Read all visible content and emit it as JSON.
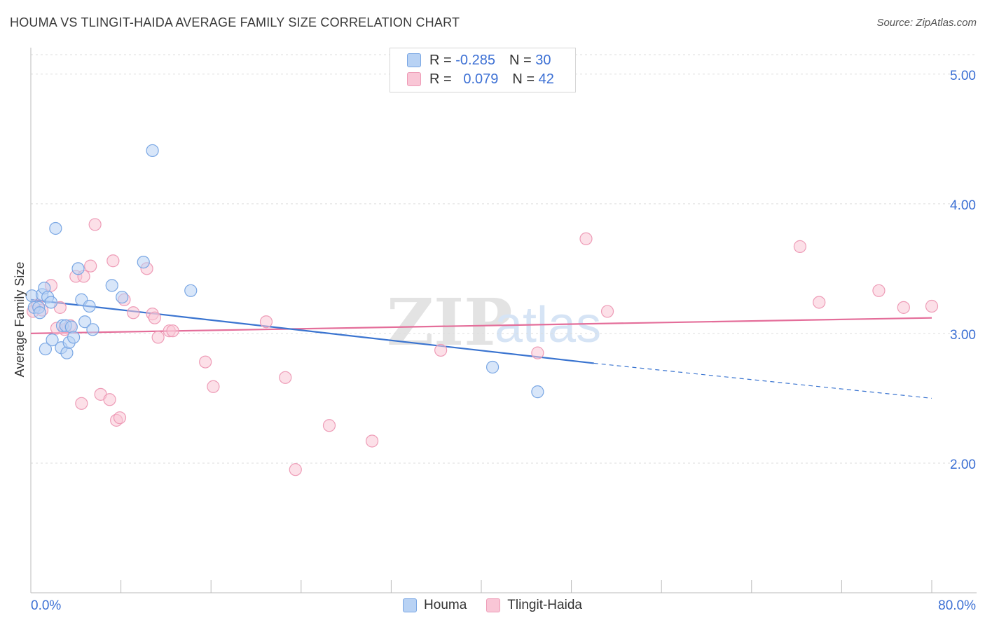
{
  "title": "HOUMA VS TLINGIT-HAIDA AVERAGE FAMILY SIZE CORRELATION CHART",
  "source": "Source: ZipAtlas.com",
  "watermark": {
    "zip": "ZIP",
    "atlas": "atlas"
  },
  "legend": {
    "rows": [
      {
        "r_label": "R = ",
        "r_value": "-0.285",
        "n_label": "N = ",
        "n_value": "30"
      },
      {
        "r_label": "R = ",
        "r_value": "0.079",
        "n_label": "N = ",
        "n_value": "42"
      }
    ]
  },
  "colors": {
    "houma_fill": "#b8d2f4",
    "houma_stroke": "#7aa7e4",
    "houma_line": "#3a74d0",
    "tlingit_fill": "#f9c6d6",
    "tlingit_stroke": "#ee9cb7",
    "tlingit_line": "#e46e9a",
    "tick_label": "#3b6fd4",
    "grid": "#dddddd"
  },
  "chart_data": {
    "type": "scatter",
    "title": "HOUMA VS TLINGIT-HAIDA AVERAGE FAMILY SIZE CORRELATION CHART",
    "xlabel": "",
    "ylabel": "Average Family Size",
    "xlim": [
      0,
      80
    ],
    "ylim": [
      1.0,
      5.15
    ],
    "x_tick_labels": [
      "0.0%",
      "80.0%"
    ],
    "y_ticks": [
      2.0,
      3.0,
      4.0,
      5.0
    ],
    "y_tick_labels": [
      "2.00",
      "3.00",
      "4.00",
      "5.00"
    ],
    "grid": true,
    "legend_position": "top-center",
    "series": [
      {
        "name": "Houma",
        "points": [
          [
            0.1,
            3.29
          ],
          [
            0.3,
            3.2
          ],
          [
            0.7,
            3.2
          ],
          [
            0.8,
            3.16
          ],
          [
            1.0,
            3.3
          ],
          [
            1.2,
            3.35
          ],
          [
            1.3,
            2.88
          ],
          [
            1.5,
            3.28
          ],
          [
            1.8,
            3.24
          ],
          [
            1.9,
            2.95
          ],
          [
            2.2,
            3.81
          ],
          [
            2.7,
            2.89
          ],
          [
            2.8,
            3.06
          ],
          [
            3.1,
            3.06
          ],
          [
            3.2,
            2.85
          ],
          [
            3.4,
            2.93
          ],
          [
            3.6,
            3.05
          ],
          [
            3.8,
            2.97
          ],
          [
            4.2,
            3.5
          ],
          [
            4.5,
            3.26
          ],
          [
            4.8,
            3.09
          ],
          [
            5.2,
            3.21
          ],
          [
            5.5,
            3.03
          ],
          [
            7.2,
            3.37
          ],
          [
            8.1,
            3.28
          ],
          [
            10.0,
            3.55
          ],
          [
            10.8,
            4.41
          ],
          [
            14.2,
            3.33
          ],
          [
            41.0,
            2.74
          ],
          [
            45.0,
            2.55
          ]
        ],
        "trend": {
          "x0": 0,
          "y0": 3.26,
          "x1": 50,
          "y1": 2.77,
          "dash_to_x": 80,
          "dash_to_y": 2.5
        }
      },
      {
        "name": "Tlingit-Haida",
        "points": [
          [
            0.2,
            3.17
          ],
          [
            0.6,
            3.22
          ],
          [
            1.0,
            3.18
          ],
          [
            1.8,
            3.37
          ],
          [
            2.3,
            3.04
          ],
          [
            2.6,
            3.2
          ],
          [
            3.0,
            3.03
          ],
          [
            3.5,
            3.06
          ],
          [
            4.0,
            3.44
          ],
          [
            4.5,
            2.46
          ],
          [
            4.7,
            3.44
          ],
          [
            5.3,
            3.52
          ],
          [
            5.7,
            3.84
          ],
          [
            6.2,
            2.53
          ],
          [
            7.0,
            2.49
          ],
          [
            7.3,
            3.56
          ],
          [
            7.6,
            2.33
          ],
          [
            7.9,
            2.35
          ],
          [
            8.3,
            3.26
          ],
          [
            9.1,
            3.16
          ],
          [
            10.3,
            3.5
          ],
          [
            10.8,
            3.15
          ],
          [
            11.0,
            3.12
          ],
          [
            11.3,
            2.97
          ],
          [
            12.3,
            3.02
          ],
          [
            12.6,
            3.02
          ],
          [
            15.5,
            2.78
          ],
          [
            16.2,
            2.59
          ],
          [
            20.9,
            3.09
          ],
          [
            22.6,
            2.66
          ],
          [
            23.5,
            1.95
          ],
          [
            26.5,
            2.29
          ],
          [
            30.3,
            2.17
          ],
          [
            36.4,
            2.87
          ],
          [
            45.0,
            2.85
          ],
          [
            49.3,
            3.73
          ],
          [
            51.2,
            3.17
          ],
          [
            68.3,
            3.67
          ],
          [
            70.0,
            3.24
          ],
          [
            75.3,
            3.33
          ],
          [
            77.5,
            3.2
          ],
          [
            80.0,
            3.21
          ]
        ],
        "trend": {
          "x0": 0,
          "y0": 3.0,
          "x1": 80,
          "y1": 3.12
        }
      }
    ]
  }
}
